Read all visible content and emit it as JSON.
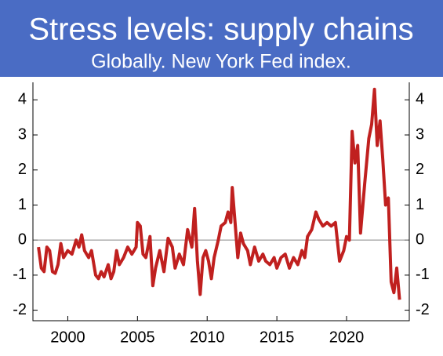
{
  "chart_data": {
    "type": "line",
    "title": "Stress levels: supply chains",
    "subtitle": "Globally. New York Fed index.",
    "x": [
      1997.9,
      1998.1,
      1998.3,
      1998.5,
      1998.7,
      1998.9,
      1999.1,
      1999.3,
      1999.5,
      1999.7,
      2000.0,
      2000.3,
      2000.6,
      2000.8,
      2001.0,
      2001.2,
      2001.5,
      2001.7,
      2002.0,
      2002.2,
      2002.4,
      2002.6,
      2002.9,
      2003.1,
      2003.3,
      2003.5,
      2003.7,
      2004.0,
      2004.3,
      2004.6,
      2004.9,
      2005.0,
      2005.2,
      2005.4,
      2005.6,
      2005.9,
      2006.1,
      2006.3,
      2006.6,
      2006.9,
      2007.2,
      2007.5,
      2007.7,
      2008.0,
      2008.3,
      2008.6,
      2008.9,
      2009.1,
      2009.3,
      2009.5,
      2009.7,
      2009.9,
      2010.1,
      2010.3,
      2010.5,
      2010.8,
      2011.0,
      2011.3,
      2011.5,
      2011.7,
      2011.8,
      2012.0,
      2012.2,
      2012.4,
      2012.6,
      2012.9,
      2013.1,
      2013.4,
      2013.7,
      2014.0,
      2014.2,
      2014.5,
      2014.8,
      2015.0,
      2015.3,
      2015.6,
      2015.9,
      2016.2,
      2016.5,
      2016.8,
      2017.0,
      2017.2,
      2017.5,
      2017.8,
      2018.0,
      2018.3,
      2018.6,
      2018.9,
      2019.2,
      2019.5,
      2019.8,
      2020.0,
      2020.2,
      2020.4,
      2020.6,
      2020.8,
      2021.0,
      2021.3,
      2021.6,
      2021.8,
      2022.0,
      2022.2,
      2022.4,
      2022.6,
      2022.8,
      2023.0,
      2023.2,
      2023.4,
      2023.6,
      2023.8
    ],
    "series": [
      {
        "name": "New York Fed index",
        "color": "#c0201f",
        "values": [
          -0.2,
          -0.8,
          -0.9,
          -0.2,
          -0.3,
          -0.9,
          -0.95,
          -0.7,
          -0.1,
          -0.5,
          -0.3,
          -0.4,
          0.0,
          -0.2,
          0.15,
          -0.3,
          -0.5,
          -0.3,
          -1.0,
          -1.1,
          -0.9,
          -1.05,
          -0.7,
          -1.1,
          -0.9,
          -0.3,
          -0.7,
          -0.5,
          -0.2,
          -0.4,
          -0.2,
          0.5,
          0.4,
          -0.4,
          -0.5,
          0.1,
          -1.3,
          -0.8,
          -0.3,
          -0.9,
          0.05,
          -0.2,
          -0.8,
          -0.4,
          -0.7,
          0.3,
          -0.2,
          0.9,
          -0.6,
          -1.55,
          -0.5,
          -0.3,
          -0.6,
          -1.1,
          -0.5,
          0.0,
          0.4,
          0.5,
          0.8,
          0.5,
          1.5,
          0.5,
          -0.5,
          0.2,
          -0.1,
          -0.3,
          -0.7,
          -0.2,
          -0.6,
          -0.4,
          -0.6,
          -0.7,
          -0.5,
          -0.8,
          -0.5,
          -0.4,
          -0.8,
          -0.5,
          -0.7,
          -0.3,
          -0.5,
          0.1,
          0.3,
          0.8,
          0.6,
          0.4,
          0.5,
          0.4,
          0.5,
          -0.6,
          -0.3,
          0.1,
          0.0,
          3.1,
          2.2,
          2.7,
          0.2,
          1.6,
          2.9,
          3.3,
          4.3,
          2.7,
          3.4,
          2.3,
          1.0,
          1.2,
          -1.2,
          -1.5,
          -0.8,
          -1.7
        ]
      }
    ],
    "xlim": [
      1997.5,
      2024.5
    ],
    "xticks": [
      2000,
      2005,
      2010,
      2015,
      2020
    ],
    "ylim": [
      -2.3,
      4.5
    ],
    "yticks": [
      -2,
      -1,
      0,
      1,
      2,
      3,
      4
    ],
    "banner_color": "#4a6cc4"
  }
}
